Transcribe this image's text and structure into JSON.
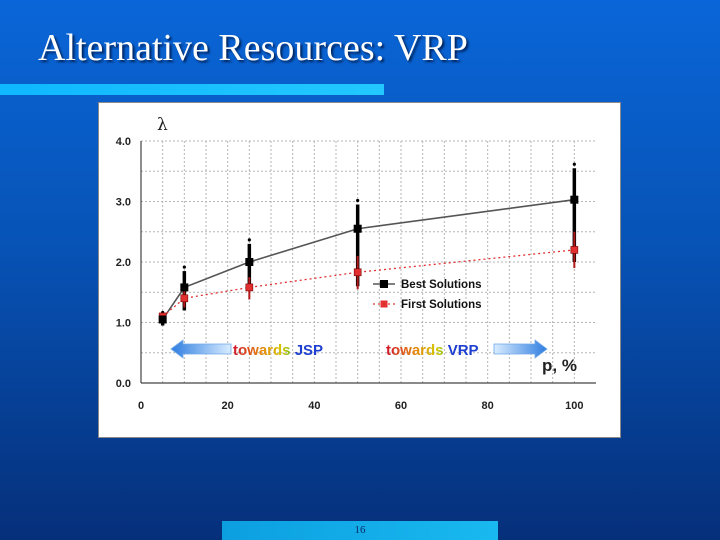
{
  "slide": {
    "title": "Alternative Resources: VRP",
    "page_number": "16"
  },
  "colors": {
    "background_top": "#0a66d8",
    "background_bottom": "#062f7a",
    "accent_bar": "#22c8ff",
    "best_series": "#555555",
    "first_series": "#e23030"
  },
  "chart_data": {
    "type": "line",
    "ylabel": "λ",
    "xlabel": "p, %",
    "xlim": [
      0,
      105
    ],
    "ylim": [
      0,
      4
    ],
    "xticks": [
      "0",
      "20",
      "40",
      "60",
      "80",
      "100"
    ],
    "yticks": [
      "0.0",
      "1.0",
      "2.0",
      "3.0",
      "4.0"
    ],
    "grid": true,
    "legend_position": "center-right",
    "series": [
      {
        "name": "Best Solutions",
        "x": [
          5,
          10,
          25,
          50,
          100
        ],
        "y": [
          1.05,
          1.58,
          2.0,
          2.55,
          3.03
        ],
        "error_low": [
          0.95,
          1.2,
          1.55,
          1.6,
          2.0
        ],
        "error_high": [
          1.1,
          1.85,
          2.3,
          2.95,
          3.55
        ]
      },
      {
        "name": "First Solutions",
        "x": [
          5,
          10,
          25,
          50,
          100
        ],
        "y": [
          1.1,
          1.4,
          1.58,
          1.83,
          2.2
        ],
        "error_low": [
          1.0,
          1.25,
          1.38,
          1.55,
          1.9
        ],
        "error_high": [
          1.12,
          1.55,
          1.75,
          2.1,
          2.5
        ]
      }
    ],
    "annotations": [
      {
        "text_a": "towards",
        "text_b": "JSP",
        "direction": "left"
      },
      {
        "text_a": "towards",
        "text_b": "VRP",
        "direction": "right"
      }
    ]
  }
}
